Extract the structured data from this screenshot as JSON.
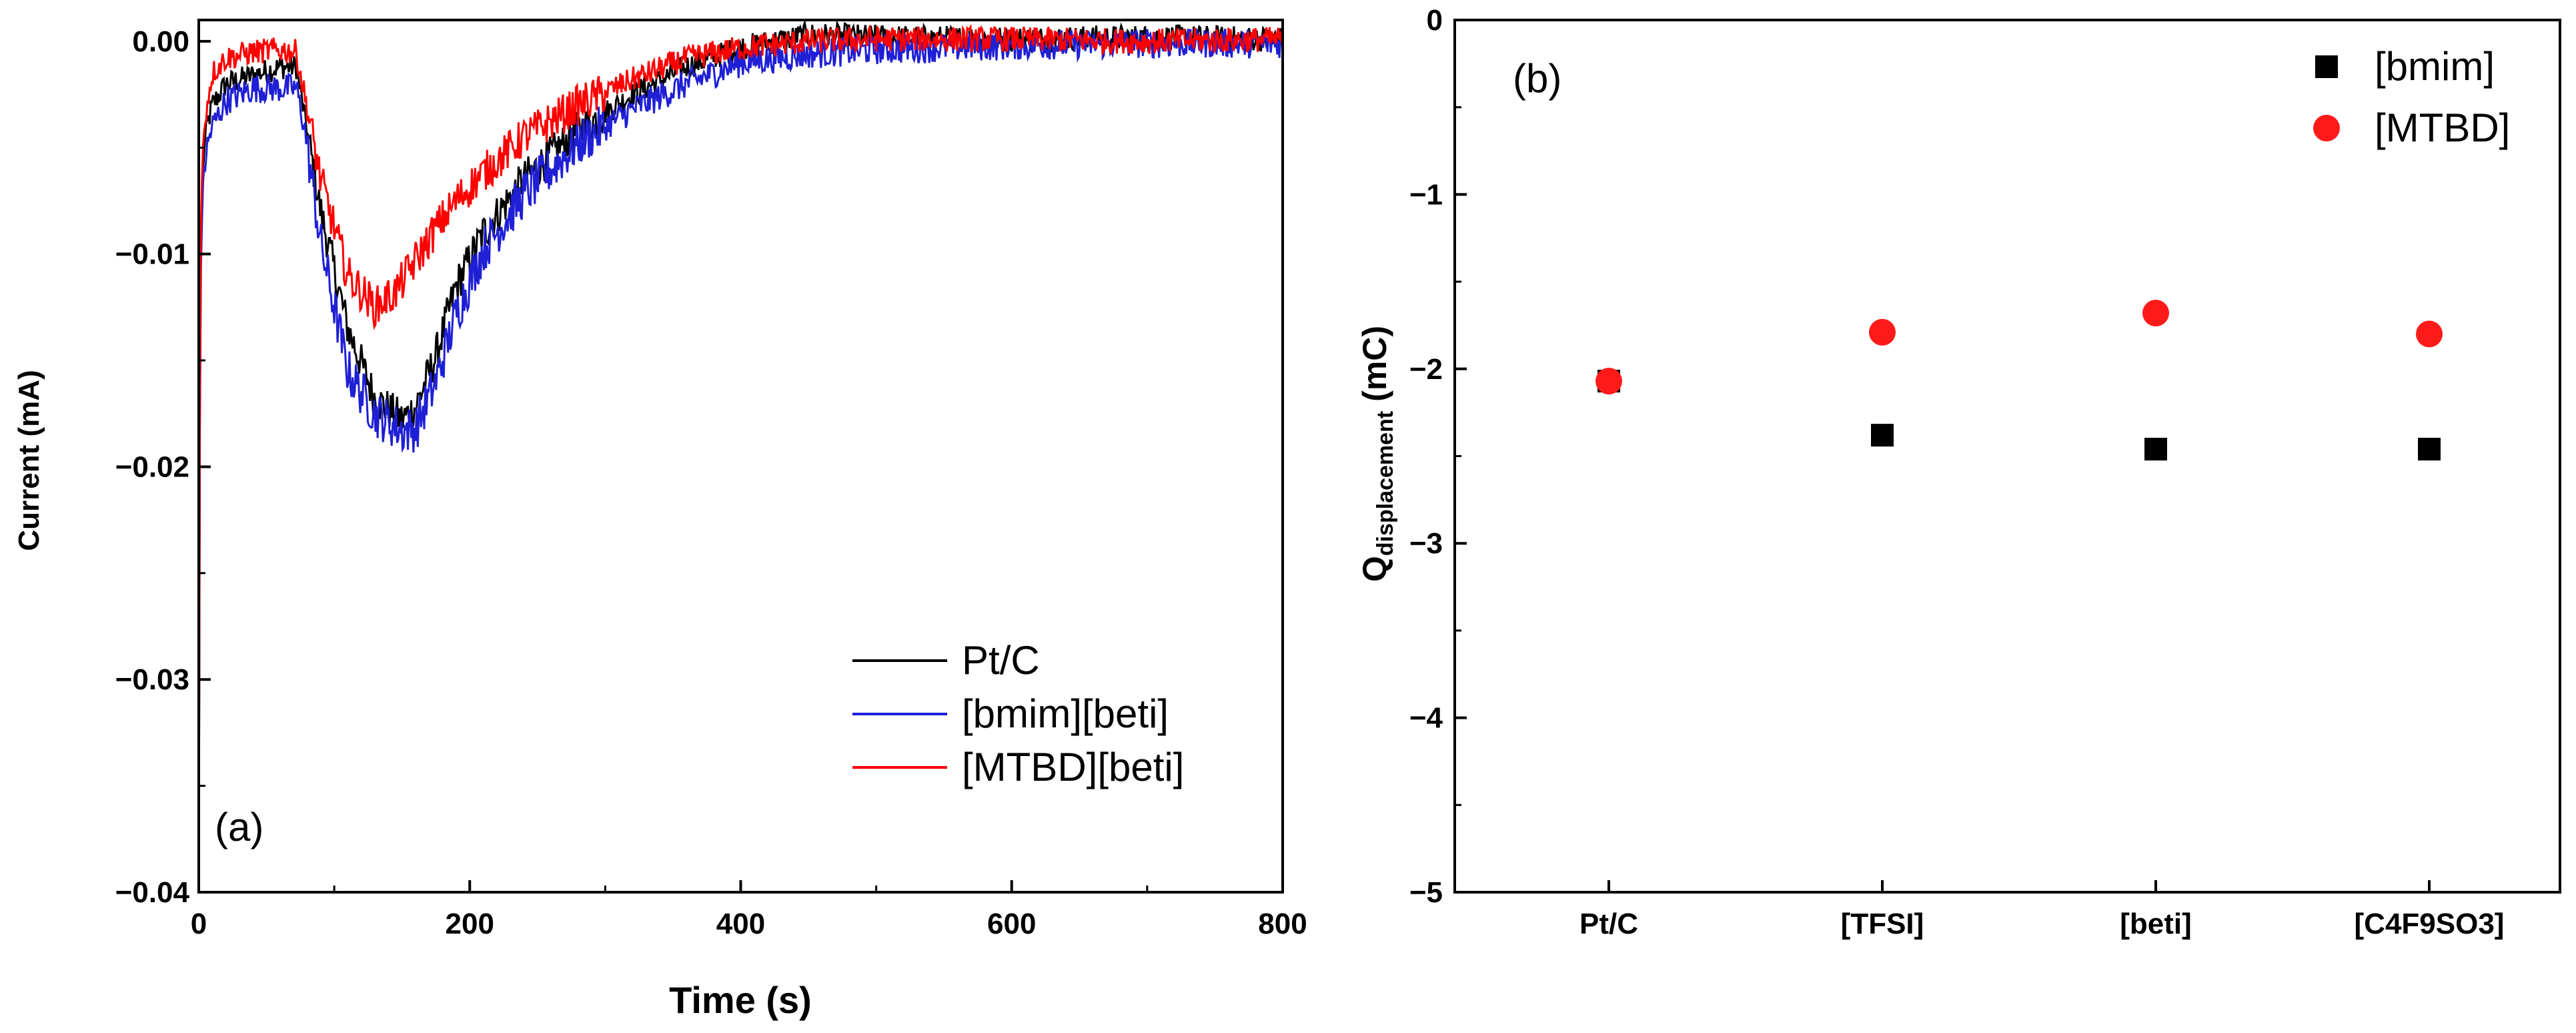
{
  "chart_data": [
    {
      "panel": "(a)",
      "type": "line",
      "xlabel": "Time (s)",
      "ylabel": "Current (mA)",
      "xlim": [
        0,
        800
      ],
      "ylim": [
        -0.04,
        0.001
      ],
      "xticks": [
        0,
        200,
        400,
        600,
        800
      ],
      "xtick_labels": [
        "0",
        "200",
        "400",
        "600",
        "800"
      ],
      "yticks": [
        0.0,
        -0.01,
        -0.02,
        -0.03,
        -0.04
      ],
      "ytick_labels": [
        "0.00",
        "-0.01",
        "-0.02",
        "-0.03",
        "-0.04"
      ],
      "series": [
        {
          "name": "Pt/C",
          "color": "#000000",
          "noise": 0.0006,
          "x": [
            0,
            1,
            2,
            4,
            6,
            10,
            20,
            40,
            60,
            72,
            78,
            90,
            110,
            130,
            150,
            160,
            175,
            190,
            210,
            240,
            280,
            320,
            360,
            400,
            450,
            500,
            600,
            700,
            800
          ],
          "y": [
            -0.04,
            -0.012,
            -0.008,
            -0.005,
            -0.004,
            -0.003,
            -0.002,
            -0.0016,
            -0.0012,
            -0.0012,
            -0.0035,
            -0.008,
            -0.0135,
            -0.0168,
            -0.0178,
            -0.0172,
            -0.0148,
            -0.0115,
            -0.009,
            -0.0065,
            -0.0042,
            -0.0025,
            -0.0012,
            -0.0003,
            0.0003,
            0.0002,
            0.0001,
            0.0002,
            0.0001
          ]
        },
        {
          "name": "[bmim][beti]",
          "color": "#1f1fd6",
          "noise": 0.0007,
          "x": [
            0,
            1,
            2,
            4,
            6,
            10,
            20,
            40,
            60,
            72,
            78,
            90,
            110,
            130,
            150,
            160,
            175,
            190,
            210,
            240,
            280,
            320,
            360,
            400,
            450,
            500,
            600,
            700,
            800
          ],
          "y": [
            -0.04,
            -0.013,
            -0.009,
            -0.006,
            -0.005,
            -0.004,
            -0.0028,
            -0.0022,
            -0.0022,
            -0.0022,
            -0.004,
            -0.0095,
            -0.0155,
            -0.0175,
            -0.0183,
            -0.0182,
            -0.016,
            -0.0128,
            -0.0098,
            -0.0072,
            -0.0048,
            -0.0032,
            -0.002,
            -0.001,
            -0.0006,
            -0.0004,
            -0.0002,
            -0.0001,
            -0.0001
          ]
        },
        {
          "name": "[MTBD][beti]",
          "color": "#ff0000",
          "noise": 0.0006,
          "x": [
            0,
            1,
            2,
            4,
            6,
            10,
            20,
            40,
            60,
            72,
            78,
            90,
            110,
            130,
            145,
            160,
            175,
            190,
            210,
            240,
            280,
            320,
            360,
            400,
            450,
            500,
            600,
            700,
            800
          ],
          "y": [
            -0.04,
            -0.011,
            -0.007,
            -0.004,
            -0.003,
            -0.0015,
            -0.0008,
            -0.0005,
            -0.0004,
            -0.0005,
            -0.0025,
            -0.0065,
            -0.011,
            -0.0125,
            -0.0118,
            -0.0103,
            -0.0088,
            -0.0075,
            -0.0062,
            -0.0045,
            -0.003,
            -0.0018,
            -0.0008,
            -0.0003,
            0.0,
            0.0001,
            0.0001,
            0.0,
            0.0001
          ]
        }
      ]
    },
    {
      "panel": "(b)",
      "type": "scatter",
      "xlabel": "",
      "ylabel_main": "Q",
      "ylabel_sub": "displacement",
      "ylabel_unit": "(mC)",
      "categories": [
        "Pt/C",
        "[TFSI]",
        "[beti]",
        "[C4F9SO3]"
      ],
      "ylim": [
        -5,
        0
      ],
      "yticks": [
        0,
        -1,
        -2,
        -3,
        -4,
        -5
      ],
      "ytick_labels": [
        "0",
        "-1",
        "-2",
        "-3",
        "-4",
        "-5"
      ],
      "series": [
        {
          "name": "[bmim]",
          "marker": "square",
          "color": "#000000",
          "values": [
            -2.07,
            -2.38,
            -2.46,
            -2.46
          ]
        },
        {
          "name": "[MTBD]",
          "marker": "circle",
          "color": "#ff1a1a",
          "values": [
            -2.07,
            -1.79,
            -1.68,
            -1.8
          ]
        }
      ]
    }
  ]
}
